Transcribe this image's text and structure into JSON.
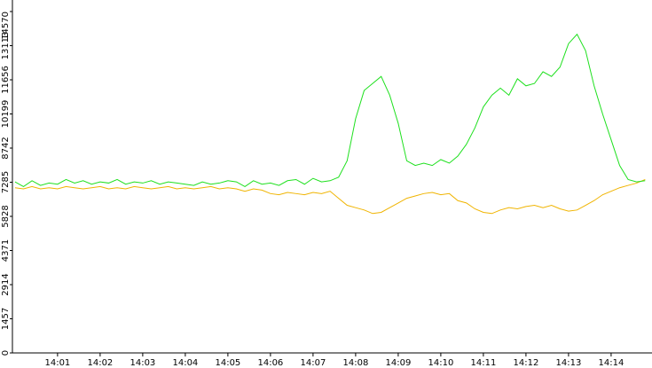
{
  "chart_data": {
    "type": "line",
    "x": [
      0,
      0.2,
      0.4,
      0.6,
      0.8,
      1,
      1.2,
      1.4,
      1.6,
      1.8,
      2,
      2.2,
      2.4,
      2.6,
      2.8,
      3,
      3.2,
      3.4,
      3.6,
      3.8,
      4,
      4.2,
      4.4,
      4.6,
      4.8,
      5,
      5.2,
      5.4,
      5.6,
      5.8,
      6,
      6.2,
      6.4,
      6.6,
      6.8,
      7,
      7.2,
      7.4,
      7.6,
      7.8,
      8,
      8.2,
      8.4,
      8.6,
      8.8,
      9,
      9.2,
      9.4,
      9.6,
      9.8,
      10,
      10.2,
      10.4,
      10.6,
      10.8,
      11,
      11.2,
      11.4,
      11.6,
      11.8,
      12,
      12.2,
      12.4,
      12.6,
      12.8,
      13,
      13.2,
      13.4,
      13.6,
      13.8,
      14,
      14.2,
      14.4,
      14.6,
      14.8
    ],
    "series": [
      {
        "color": "#1ee01e",
        "values": [
          7300,
          7100,
          7350,
          7150,
          7250,
          7200,
          7400,
          7250,
          7350,
          7200,
          7300,
          7250,
          7400,
          7200,
          7300,
          7250,
          7350,
          7200,
          7300,
          7250,
          7200,
          7150,
          7300,
          7200,
          7250,
          7350,
          7300,
          7100,
          7350,
          7200,
          7250,
          7150,
          7350,
          7400,
          7200,
          7450,
          7300,
          7350,
          7500,
          8200,
          10000,
          11200,
          11500,
          11800,
          11000,
          9800,
          8200,
          8000,
          8100,
          8000,
          8250,
          8100,
          8400,
          8900,
          9600,
          10500,
          11000,
          11300,
          11000,
          11700,
          11400,
          11500,
          12000,
          11800,
          12200,
          13200,
          13600,
          12900,
          11400,
          10200,
          9100,
          8000,
          7400,
          7300,
          7350
        ]
      },
      {
        "color": "#f0b400",
        "values": [
          7050,
          7000,
          7100,
          7000,
          7050,
          7000,
          7100,
          7050,
          7000,
          7050,
          7100,
          7000,
          7050,
          7000,
          7100,
          7050,
          7000,
          7050,
          7100,
          7000,
          7050,
          7000,
          7050,
          7100,
          7000,
          7050,
          7000,
          6900,
          7000,
          6950,
          6800,
          6750,
          6850,
          6800,
          6750,
          6850,
          6800,
          6900,
          6600,
          6300,
          6200,
          6100,
          5950,
          6000,
          6200,
          6400,
          6600,
          6700,
          6800,
          6850,
          6750,
          6800,
          6500,
          6400,
          6150,
          6000,
          5950,
          6100,
          6200,
          6150,
          6250,
          6300,
          6200,
          6300,
          6150,
          6050,
          6100,
          6300,
          6500,
          6750,
          6900,
          7050,
          7150,
          7250,
          7400
        ]
      }
    ],
    "xlim": [
      -0.06,
      14.96
    ],
    "xticks": [
      {
        "value": 1,
        "label": "14:01"
      },
      {
        "value": 2,
        "label": "14:02"
      },
      {
        "value": 3,
        "label": "14:03"
      },
      {
        "value": 4,
        "label": "14:04"
      },
      {
        "value": 5,
        "label": "14:05"
      },
      {
        "value": 6,
        "label": "14:06"
      },
      {
        "value": 7,
        "label": "14:07"
      },
      {
        "value": 8,
        "label": "14:08"
      },
      {
        "value": 9,
        "label": "14:09"
      },
      {
        "value": 10,
        "label": "14:10"
      },
      {
        "value": 11,
        "label": "14:11"
      },
      {
        "value": 12,
        "label": "14:12"
      },
      {
        "value": 13,
        "label": "14:13"
      },
      {
        "value": 14,
        "label": "14:14"
      }
    ],
    "ylim": [
      0,
      14570
    ],
    "yticks": [
      0,
      1457,
      2914,
      4371,
      5828,
      7285,
      8742,
      10199,
      11656,
      13113,
      14570
    ]
  }
}
